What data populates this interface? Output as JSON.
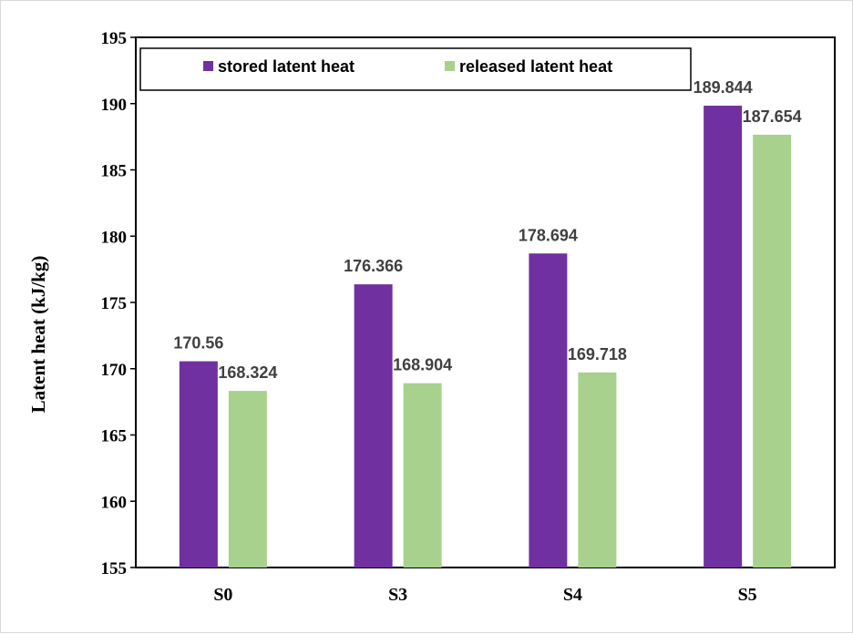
{
  "chart_data": {
    "type": "bar",
    "title": "",
    "xlabel": "",
    "ylabel": "Latent heat (kJ/kg)",
    "categories": [
      "S0",
      "S3",
      "S4",
      "S5"
    ],
    "series": [
      {
        "name": "stored latent heat",
        "color": "#7030a0",
        "values": [
          170.56,
          176.366,
          178.694,
          189.844
        ],
        "labels": [
          "170.56",
          "176.366",
          "178.694",
          "189.844"
        ]
      },
      {
        "name": "released latent heat",
        "color": "#a9d18e",
        "values": [
          168.324,
          168.904,
          169.718,
          187.654
        ],
        "labels": [
          "168.324",
          "168.904",
          "169.718",
          "187.654"
        ]
      }
    ],
    "ylim": [
      155,
      195
    ],
    "yticks": [
      "155",
      "160",
      "165",
      "170",
      "175",
      "180",
      "185",
      "190",
      "195"
    ],
    "grid": false,
    "legend": "top (inside plot, boxed)"
  }
}
